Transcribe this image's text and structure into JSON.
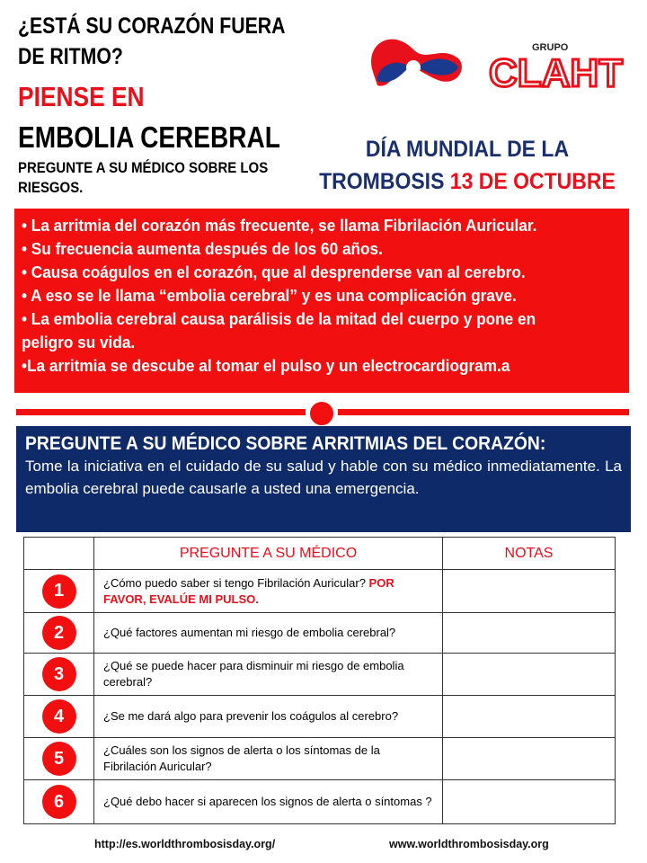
{
  "header": {
    "title_lines": [
      "¿ESTÁ SU CORAZÓN FUERA",
      "DE RITMO?"
    ],
    "subtitle": "PIENSE EN",
    "main": "EMBOLIA CEREBRAL",
    "ask": "PREGUNTE A SU MÉDICO SOBRE LOS RIESGOS."
  },
  "logos": {
    "clah_text": "GRUPO CLAHT"
  },
  "event": {
    "line1": "DÍA MUNDIAL DE  LA",
    "line2_a": "TROMBOSIS ",
    "line2_b": "13 DE OCTUBRE"
  },
  "facts": [
    "• La arritmia del corazón más frecuente, se llama Fibrilación Auricular.",
    "• Su frecuencia aumenta después de los 60 años.",
    "• Causa coágulos en el corazón, que al desprenderse van al cerebro.",
    "• A eso se le llama “embolia cerebral” y es una complicación grave.",
    "• La embolia cerebral causa parálisis de la mitad del cuerpo y pone en",
    "peligro su vida.",
    "•La arritmia se descube al tomar el pulso y un electrocardiogram.a"
  ],
  "ask_box": {
    "title": "PREGUNTE A SU MÉDICO SOBRE ARRITMIAS DEL CORAZÓN:",
    "text": "Tome la iniciativa en el cuidado de su salud y hable con su médico inmediatamente.  La embolia cerebral puede causarle a usted una emergencia."
  },
  "table": {
    "headers": [
      "",
      "PREGUNTE  A SU MÉDICO",
      "NOTAS"
    ],
    "rows": [
      {
        "n": "1",
        "q": "¿Cómo puedo saber si tengo Fibrilación Auricular? ",
        "q_red": "POR FAVOR, EVALÚE MI PULSO."
      },
      {
        "n": "2",
        "q": "¿Qué factores aumentan mi riesgo de embolia cerebral?"
      },
      {
        "n": "3",
        "q": "¿Qué se puede hacer para disminuir mi riesgo de embolia cerebral?"
      },
      {
        "n": "4",
        "q": "¿Se me dará algo para prevenir los coágulos  al cerebro?"
      },
      {
        "n": "5",
        "q": "¿Cuáles son los signos de alerta o los síntomas de la Fibrilación Auricular?"
      },
      {
        "n": "6",
        "q": "¿Qué debo hacer si aparecen los signos de alerta o síntomas ?"
      }
    ]
  },
  "footer": {
    "link1": "http://es.worldthrombosisday.org/",
    "link2": "www.worldthrombosisday.org"
  },
  "colors": {
    "red": "#f20f0f",
    "navy": "#0e2a68",
    "title_blue": "#1a2f6e"
  }
}
